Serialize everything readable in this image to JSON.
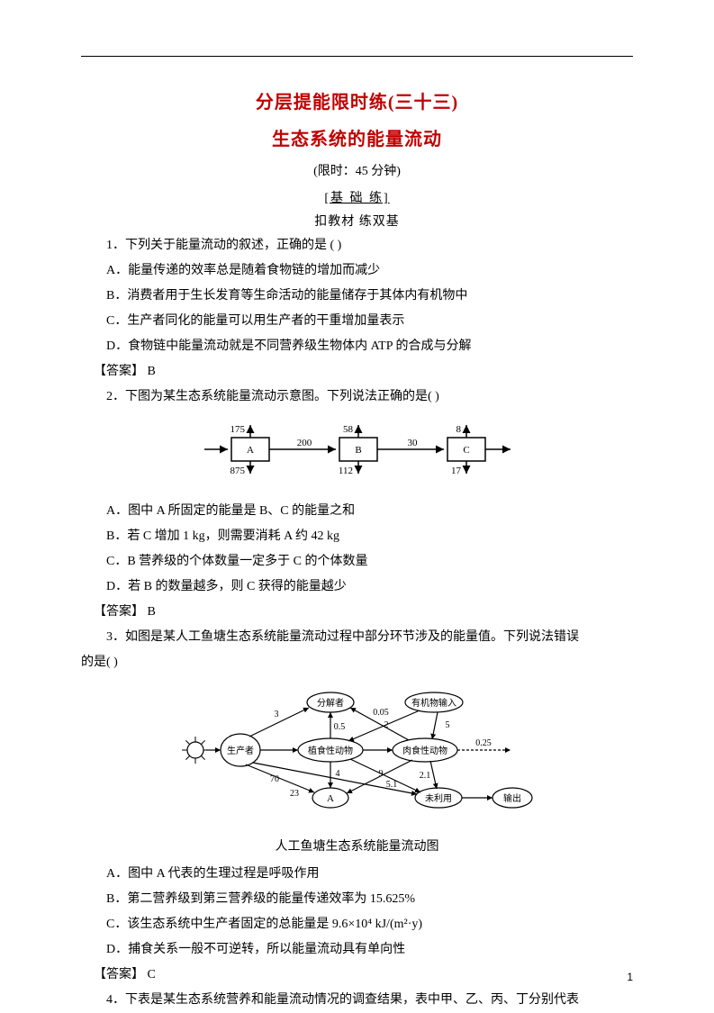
{
  "colors": {
    "title": "#c00000",
    "text": "#000000",
    "line": "#000000"
  },
  "title_main": "分层提能限时练(三十三)",
  "title_sub": "生态系统的能量流动",
  "time_limit": "(限时：45 分钟)",
  "sec_head": "[基  础  练]",
  "sec_sub": "扣教材  练双基",
  "q1": {
    "stem": "1．下列关于能量流动的叙述，正确的是    (    )",
    "A": "A．能量传递的效率总是随着食物链的增加而减少",
    "B": "B．消费者用于生长发育等生命活动的能量储存于其体内有机物中",
    "C": "C．生产者同化的能量可以用生产者的干重增加量表示",
    "D": "D．食物链中能量流动就是不同营养级生物体内 ATP 的合成与分解",
    "answer": "【答案】   B"
  },
  "q2": {
    "stem": "2．下图为某生态系统能量流动示意图。下列说法正确的是(    )",
    "A": "A．图中 A 所固定的能量是 B、C 的能量之和",
    "B": "B．若 C 增加 1 kg，则需要消耗 A 约 42 kg",
    "C": "C．B 营养级的个体数量一定多于 C 的个体数量",
    "D": "D．若 B 的数量越多，则 C 获得的能量越少",
    "answer": "【答案】   B",
    "diagram": {
      "boxes": [
        {
          "label": "A",
          "up": "175",
          "down": "875",
          "to_next": "200"
        },
        {
          "label": "B",
          "up": "58",
          "down": "112",
          "to_next": "30"
        },
        {
          "label": "C",
          "up": "8",
          "down": "17",
          "to_next": ""
        }
      ],
      "box_stroke": "#000000",
      "arrow_stroke": "#000000",
      "font_size": 11
    }
  },
  "q3": {
    "stem1": "3．如图是某人工鱼塘生态系统能量流动过程中部分环节涉及的能量值。下列说法错误",
    "stem2": "的是(    )",
    "caption": "人工鱼塘生态系统能量流动图",
    "A": "A．图中 A 代表的生理过程是呼吸作用",
    "B": "B．第二营养级到第三营养级的能量传递效率为 15.625%",
    "C": "C．该生态系统中生产者固定的总能量是 9.6×10⁴ kJ/(m²·y)",
    "D": "D．捕食关系一般不可逆转，所以能量流动具有单向性",
    "answer": "【答案】   C",
    "diagram": {
      "nodes": {
        "sun": "☀",
        "producer": "生产者",
        "herbivore": "植食性动物",
        "carnivore": "肉食性动物",
        "decomposer": "分解者",
        "organic_input": "有机物输入",
        "A": "A",
        "unused": "未利用",
        "output": "输出"
      },
      "edge_labels": [
        "3",
        "0.5",
        "0.05",
        "2",
        "5",
        "70",
        "4",
        "9",
        "2.1",
        "0.25",
        "5.1",
        "23"
      ],
      "stroke": "#000000",
      "font_size": 11
    }
  },
  "q4": {
    "stem": "4．下表是某生态系统营养和能量流动情况的调查结果，表中甲、乙、丙、丁分别代表"
  },
  "page_number": "1"
}
